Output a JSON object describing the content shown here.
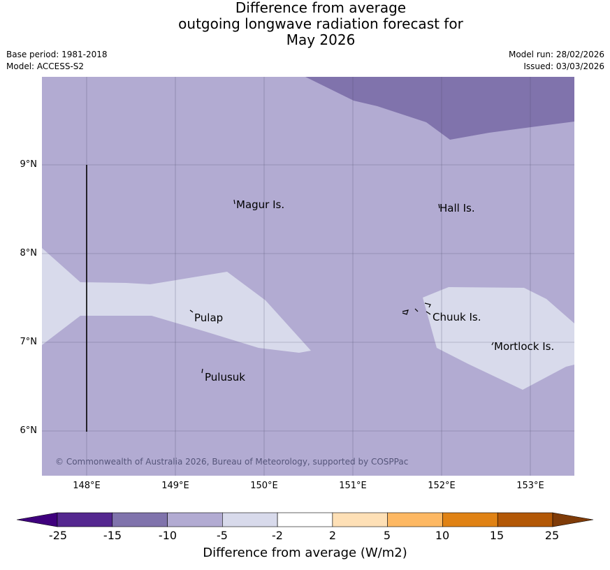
{
  "title": {
    "line1": "Difference from average",
    "line2": "outgoing longwave radiation forecast for",
    "line3": "May 2026"
  },
  "meta": {
    "base_period": "Base period: 1981-2018",
    "model": "Model: ACCESS-S2",
    "model_run": "Model run: 28/02/2026",
    "issued": "Issued: 03/03/2026"
  },
  "axes": {
    "lat_labels": [
      "9°N",
      "8°N",
      "7°N",
      "6°N"
    ],
    "lon_labels": [
      "148°E",
      "149°E",
      "150°E",
      "151°E",
      "152°E",
      "153°E"
    ]
  },
  "places": {
    "magur": "Magur Is.",
    "hall": "Hall Is.",
    "pulap": "Pulap",
    "chuuk": "Chuuk Is.",
    "mortlock": "Mortlock Is.",
    "pulusuk": "Pulusuk"
  },
  "copyright": "© Commonwealth of Australia 2026, Bureau of Meteorology, supported by COSPPac",
  "colorbar": {
    "label": "Difference from average (W/m2)",
    "ticks": [
      "-25",
      "-15",
      "-10",
      "-5",
      "-2",
      "2",
      "5",
      "10",
      "15",
      "25"
    ],
    "colors": {
      "under": "#3f007d",
      "bins": [
        "#54278f",
        "#8073ac",
        "#b2abd2",
        "#d8daeb",
        "#ffffff",
        "#fee0b6",
        "#fdb863",
        "#e08214",
        "#b35806"
      ],
      "over": "#7f3b08"
    }
  },
  "map_colors": {
    "base": "#b2abd2",
    "low": "#8073ac",
    "light": "#d8daeb"
  }
}
